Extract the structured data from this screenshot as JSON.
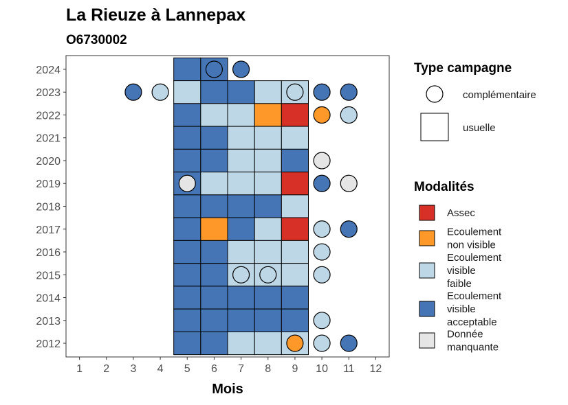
{
  "chart_data": {
    "type": "heatmap",
    "title": "La Rieuze à Lannepax",
    "subtitle": "O6730002",
    "xlabel": "Mois",
    "ylabel": "",
    "x_ticks": [
      "1",
      "2",
      "3",
      "4",
      "5",
      "6",
      "7",
      "8",
      "9",
      "10",
      "11",
      "12"
    ],
    "y_ticks": [
      "2012",
      "2013",
      "2014",
      "2015",
      "2016",
      "2017",
      "2018",
      "2019",
      "2020",
      "2021",
      "2022",
      "2023",
      "2024"
    ],
    "xlim": [
      0.5,
      12.5
    ],
    "ylim": [
      2011.4,
      2024.6
    ],
    "grid": false,
    "legend_position": "right",
    "legend_shape_title": "Type campagne",
    "legend_shapes": [
      {
        "key": "circle",
        "label": "complémentaire"
      },
      {
        "key": "square",
        "label": "usuelle"
      }
    ],
    "legend_modalities_title": "Modalités",
    "modalities": [
      {
        "key": "A",
        "lines": [
          "Assec"
        ],
        "color": "#d73027"
      },
      {
        "key": "N",
        "lines": [
          "Ecoulement",
          "non visible"
        ],
        "color": "#fe9929"
      },
      {
        "key": "F",
        "lines": [
          "Ecoulement",
          "visible",
          "faible"
        ],
        "color": "#bdd7e7"
      },
      {
        "key": "V",
        "lines": [
          "Ecoulement",
          "visible",
          "acceptable"
        ],
        "color": "#4575b4"
      },
      {
        "key": "M",
        "lines": [
          "Donnée",
          "manquante"
        ],
        "color": "#e5e5e5"
      }
    ],
    "usuelle": [
      {
        "year": 2024,
        "month": 5,
        "modality": "V"
      },
      {
        "year": 2024,
        "month": 6,
        "modality": "V"
      },
      {
        "year": 2023,
        "month": 5,
        "modality": "F"
      },
      {
        "year": 2023,
        "month": 6,
        "modality": "V"
      },
      {
        "year": 2023,
        "month": 7,
        "modality": "V"
      },
      {
        "year": 2023,
        "month": 8,
        "modality": "F"
      },
      {
        "year": 2023,
        "month": 9,
        "modality": "F"
      },
      {
        "year": 2022,
        "month": 5,
        "modality": "V"
      },
      {
        "year": 2022,
        "month": 6,
        "modality": "F"
      },
      {
        "year": 2022,
        "month": 7,
        "modality": "F"
      },
      {
        "year": 2022,
        "month": 8,
        "modality": "N"
      },
      {
        "year": 2022,
        "month": 9,
        "modality": "A"
      },
      {
        "year": 2021,
        "month": 5,
        "modality": "V"
      },
      {
        "year": 2021,
        "month": 6,
        "modality": "V"
      },
      {
        "year": 2021,
        "month": 7,
        "modality": "F"
      },
      {
        "year": 2021,
        "month": 8,
        "modality": "F"
      },
      {
        "year": 2021,
        "month": 9,
        "modality": "F"
      },
      {
        "year": 2020,
        "month": 5,
        "modality": "V"
      },
      {
        "year": 2020,
        "month": 6,
        "modality": "V"
      },
      {
        "year": 2020,
        "month": 7,
        "modality": "F"
      },
      {
        "year": 2020,
        "month": 8,
        "modality": "F"
      },
      {
        "year": 2020,
        "month": 9,
        "modality": "V"
      },
      {
        "year": 2019,
        "month": 5,
        "modality": "V"
      },
      {
        "year": 2019,
        "month": 6,
        "modality": "F"
      },
      {
        "year": 2019,
        "month": 7,
        "modality": "F"
      },
      {
        "year": 2019,
        "month": 8,
        "modality": "F"
      },
      {
        "year": 2019,
        "month": 9,
        "modality": "A"
      },
      {
        "year": 2018,
        "month": 5,
        "modality": "V"
      },
      {
        "year": 2018,
        "month": 6,
        "modality": "V"
      },
      {
        "year": 2018,
        "month": 7,
        "modality": "V"
      },
      {
        "year": 2018,
        "month": 8,
        "modality": "V"
      },
      {
        "year": 2018,
        "month": 9,
        "modality": "F"
      },
      {
        "year": 2017,
        "month": 5,
        "modality": "V"
      },
      {
        "year": 2017,
        "month": 6,
        "modality": "N"
      },
      {
        "year": 2017,
        "month": 7,
        "modality": "V"
      },
      {
        "year": 2017,
        "month": 8,
        "modality": "F"
      },
      {
        "year": 2017,
        "month": 9,
        "modality": "A"
      },
      {
        "year": 2016,
        "month": 5,
        "modality": "V"
      },
      {
        "year": 2016,
        "month": 6,
        "modality": "V"
      },
      {
        "year": 2016,
        "month": 7,
        "modality": "F"
      },
      {
        "year": 2016,
        "month": 8,
        "modality": "F"
      },
      {
        "year": 2016,
        "month": 9,
        "modality": "F"
      },
      {
        "year": 2015,
        "month": 5,
        "modality": "V"
      },
      {
        "year": 2015,
        "month": 6,
        "modality": "V"
      },
      {
        "year": 2015,
        "month": 7,
        "modality": "F"
      },
      {
        "year": 2015,
        "month": 8,
        "modality": "F"
      },
      {
        "year": 2015,
        "month": 9,
        "modality": "F"
      },
      {
        "year": 2014,
        "month": 5,
        "modality": "V"
      },
      {
        "year": 2014,
        "month": 6,
        "modality": "V"
      },
      {
        "year": 2014,
        "month": 7,
        "modality": "V"
      },
      {
        "year": 2014,
        "month": 8,
        "modality": "V"
      },
      {
        "year": 2014,
        "month": 9,
        "modality": "V"
      },
      {
        "year": 2013,
        "month": 5,
        "modality": "V"
      },
      {
        "year": 2013,
        "month": 6,
        "modality": "V"
      },
      {
        "year": 2013,
        "month": 7,
        "modality": "V"
      },
      {
        "year": 2013,
        "month": 8,
        "modality": "V"
      },
      {
        "year": 2013,
        "month": 9,
        "modality": "V"
      },
      {
        "year": 2012,
        "month": 5,
        "modality": "V"
      },
      {
        "year": 2012,
        "month": 6,
        "modality": "V"
      },
      {
        "year": 2012,
        "month": 7,
        "modality": "F"
      },
      {
        "year": 2012,
        "month": 8,
        "modality": "F"
      },
      {
        "year": 2012,
        "month": 9,
        "modality": "F"
      }
    ],
    "complementaire": [
      {
        "year": 2024,
        "month": 6,
        "modality": "V"
      },
      {
        "year": 2024,
        "month": 7,
        "modality": "V"
      },
      {
        "year": 2023,
        "month": 3,
        "modality": "V"
      },
      {
        "year": 2023,
        "month": 4,
        "modality": "F"
      },
      {
        "year": 2023,
        "month": 9,
        "modality": "F"
      },
      {
        "year": 2023,
        "month": 10,
        "modality": "V"
      },
      {
        "year": 2023,
        "month": 11,
        "modality": "V"
      },
      {
        "year": 2022,
        "month": 10,
        "modality": "N"
      },
      {
        "year": 2022,
        "month": 11,
        "modality": "F"
      },
      {
        "year": 2020,
        "month": 10,
        "modality": "M"
      },
      {
        "year": 2019,
        "month": 5,
        "modality": "M"
      },
      {
        "year": 2019,
        "month": 10,
        "modality": "V"
      },
      {
        "year": 2019,
        "month": 11,
        "modality": "M"
      },
      {
        "year": 2017,
        "month": 10,
        "modality": "F"
      },
      {
        "year": 2017,
        "month": 11,
        "modality": "V"
      },
      {
        "year": 2016,
        "month": 10,
        "modality": "F"
      },
      {
        "year": 2015,
        "month": 7,
        "modality": "F"
      },
      {
        "year": 2015,
        "month": 8,
        "modality": "F"
      },
      {
        "year": 2015,
        "month": 10,
        "modality": "F"
      },
      {
        "year": 2013,
        "month": 10,
        "modality": "F"
      },
      {
        "year": 2012,
        "month": 9,
        "modality": "N"
      },
      {
        "year": 2012,
        "month": 10,
        "modality": "F"
      },
      {
        "year": 2012,
        "month": 11,
        "modality": "V"
      }
    ]
  }
}
